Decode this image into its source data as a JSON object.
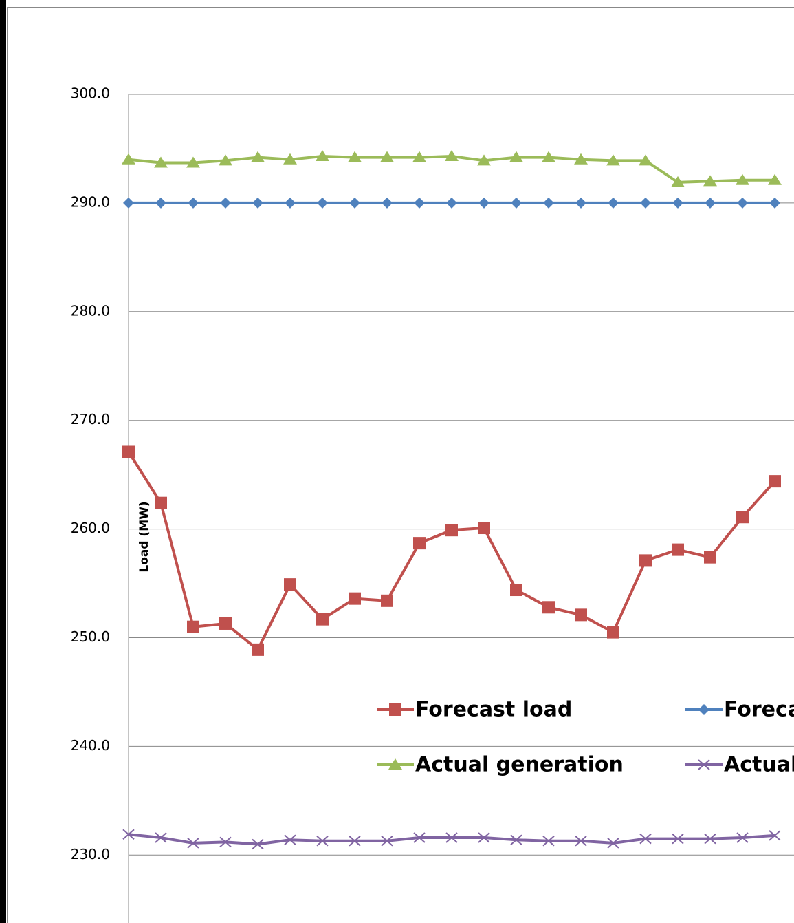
{
  "chart_data": {
    "type": "line",
    "y_label": "Load (MW)",
    "categories": [
      null,
      null,
      null,
      null,
      null,
      null,
      null,
      null,
      null,
      null,
      null,
      null,
      null,
      null,
      null,
      null,
      null,
      null,
      null,
      null,
      null
    ],
    "ylim": [
      220,
      300
    ],
    "yticks": [
      {
        "value": 230,
        "label": "230.0"
      },
      {
        "value": 240,
        "label": "240.0"
      },
      {
        "value": 250,
        "label": "250.0"
      },
      {
        "value": 260,
        "label": "260.0"
      },
      {
        "value": 270,
        "label": "270.0"
      },
      {
        "value": 280,
        "label": "280.0"
      },
      {
        "value": 290,
        "label": "290.0"
      },
      {
        "value": 300,
        "label": "300.0"
      }
    ],
    "grid": true,
    "series": [
      {
        "name": "Forecast load",
        "color": "#c0504d",
        "marker": "square",
        "values": [
          267.1,
          262.4,
          251.0,
          251.3,
          248.9,
          254.9,
          251.7,
          253.6,
          253.4,
          258.7,
          259.9,
          260.1,
          254.4,
          252.8,
          252.1,
          250.5,
          257.1,
          258.1,
          257.4,
          261.1,
          264.4
        ]
      },
      {
        "name": "Forecast generation",
        "color": "#4f81bd",
        "marker": "diamond",
        "values": [
          290.0,
          290.0,
          290.0,
          290.0,
          290.0,
          290.0,
          290.0,
          290.0,
          290.0,
          290.0,
          290.0,
          290.0,
          290.0,
          290.0,
          290.0,
          290.0,
          290.0,
          290.0,
          290.0,
          290.0,
          290.0
        ]
      },
      {
        "name": "Actual generation",
        "color": "#9bbb59",
        "marker": "triangle",
        "values": [
          294.0,
          293.7,
          293.7,
          293.9,
          294.2,
          294.0,
          294.3,
          294.2,
          294.2,
          294.2,
          294.3,
          293.9,
          294.2,
          294.2,
          294.0,
          293.9,
          293.9,
          291.9,
          292.0,
          292.1,
          292.1
        ]
      },
      {
        "name": "Actual load",
        "color": "#8064a2",
        "marker": "x",
        "values": [
          231.9,
          231.6,
          231.1,
          231.2,
          231.0,
          231.4,
          231.3,
          231.3,
          231.3,
          231.6,
          231.6,
          231.6,
          231.4,
          231.3,
          231.3,
          231.1,
          231.5,
          231.5,
          231.5,
          231.6,
          231.8
        ]
      }
    ]
  }
}
